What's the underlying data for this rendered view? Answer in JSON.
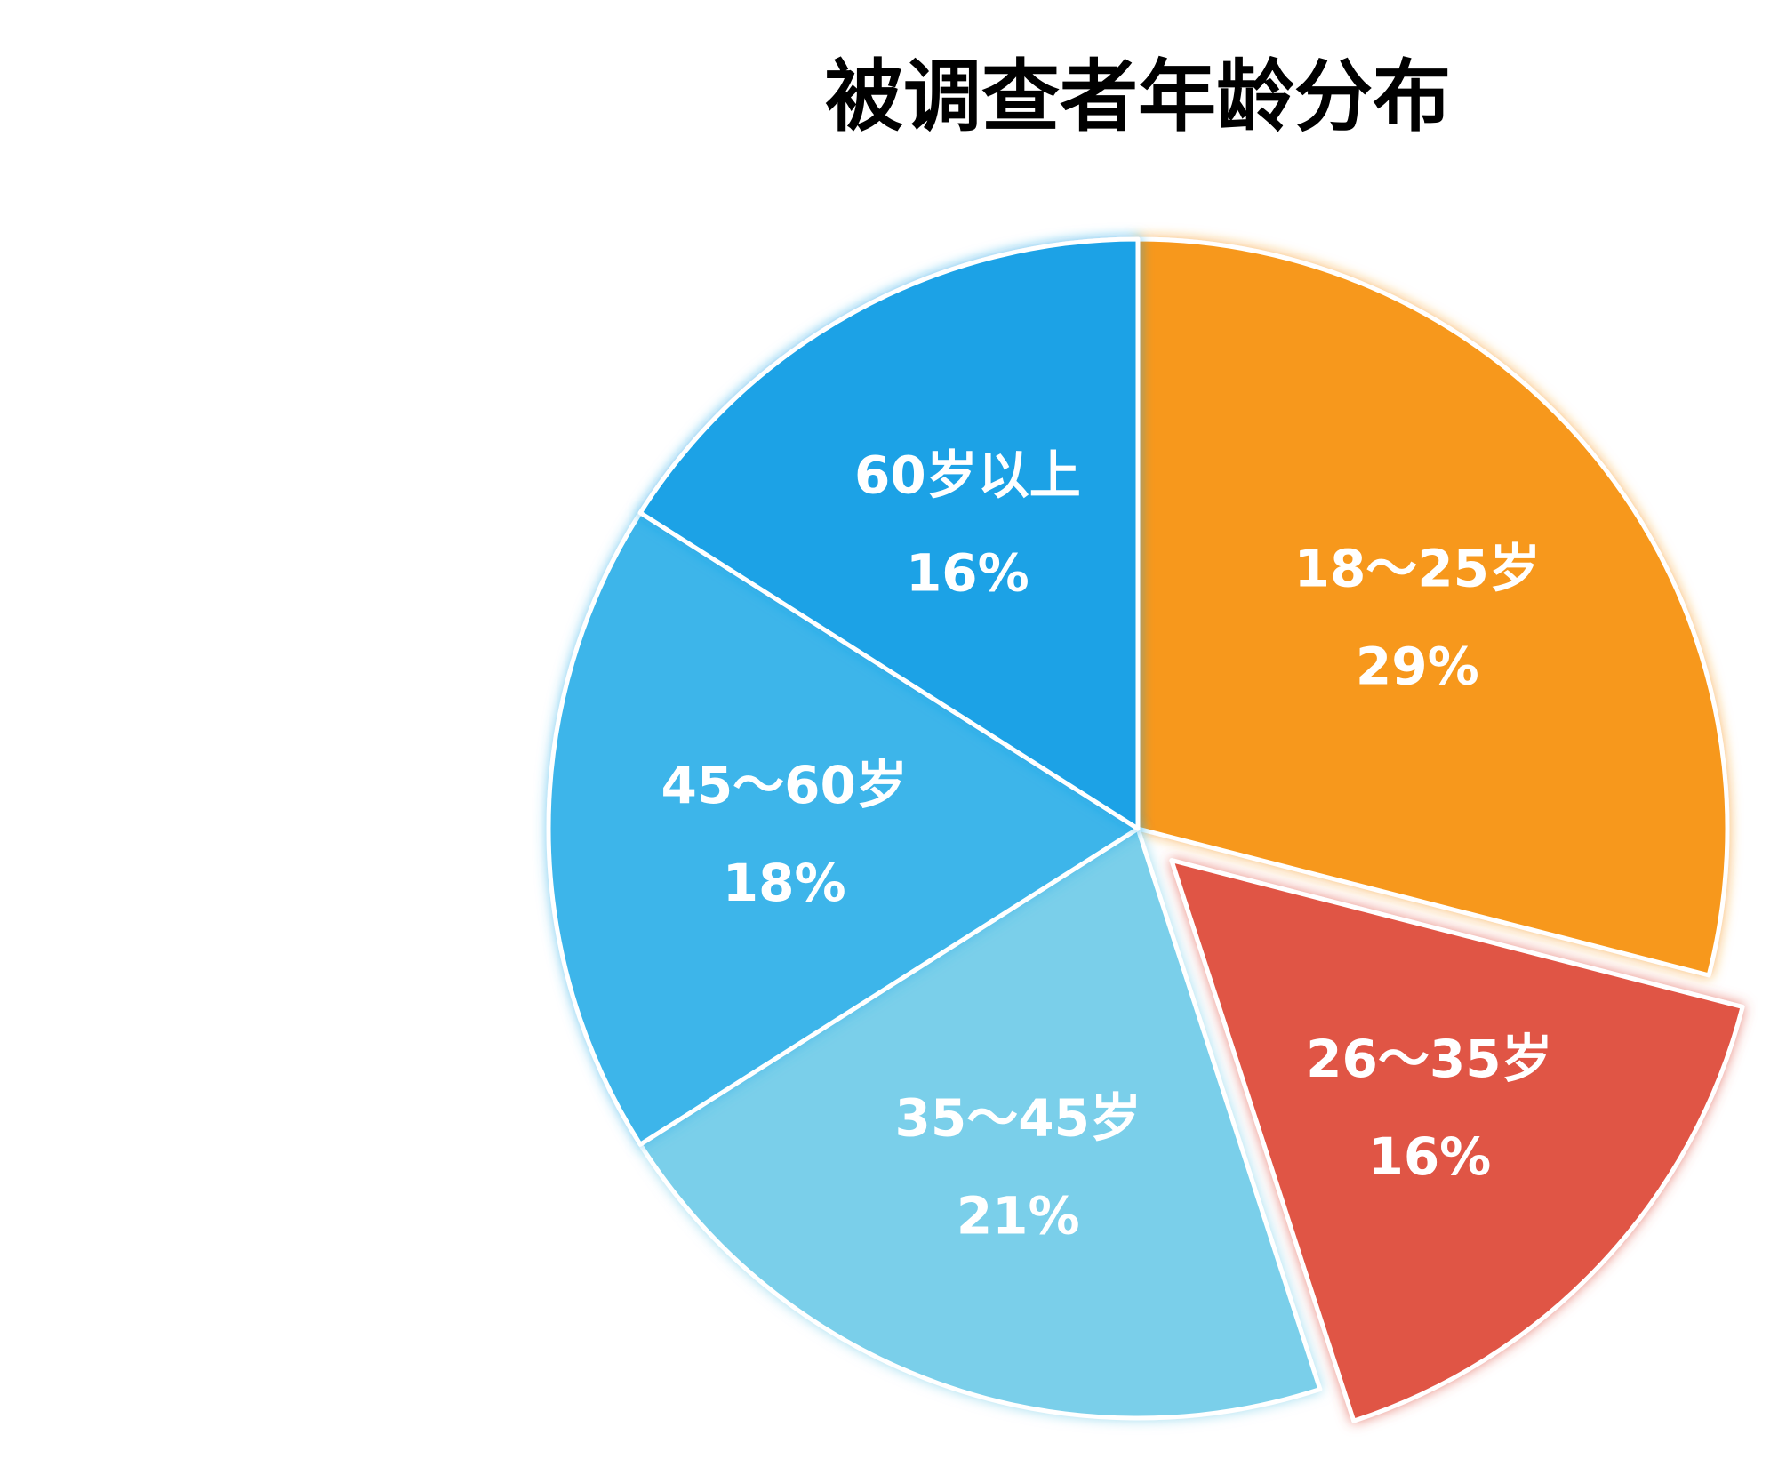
{
  "chart_data": {
    "type": "pie",
    "title": "被调查者年龄分布",
    "categories": [
      "18～25岁",
      "26～35岁",
      "35～45岁",
      "45～60岁",
      "60岁以上"
    ],
    "values": [
      29,
      16,
      21,
      18,
      16
    ],
    "value_labels": [
      "29%",
      "16%",
      "21%",
      "18%",
      "16%"
    ],
    "colors": [
      "#f7981d",
      "#e05445",
      "#7acfea",
      "#3db5ea",
      "#1aa2e6"
    ],
    "explode": [
      false,
      true,
      false,
      false,
      false
    ]
  }
}
